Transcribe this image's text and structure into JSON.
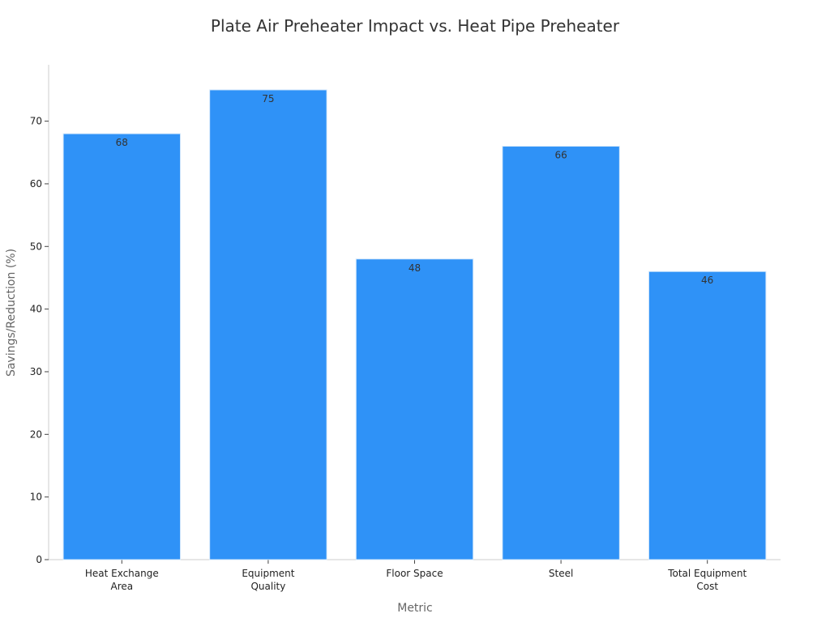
{
  "chart_data": {
    "type": "bar",
    "title": "Plate Air Preheater Impact vs. Heat Pipe Preheater",
    "xlabel": "Metric",
    "ylabel": "Savings/Reduction (%)",
    "categories": [
      [
        "Heat Exchange",
        "Area"
      ],
      [
        "Equipment",
        "Quality"
      ],
      [
        "Floor Space"
      ],
      [
        "Steel"
      ],
      [
        "Total Equipment",
        "Cost"
      ]
    ],
    "values": [
      68,
      75,
      48,
      66,
      46
    ],
    "ylim": [
      0,
      79
    ],
    "yticks": [
      0,
      10,
      20,
      30,
      40,
      50,
      60,
      70
    ],
    "grid": false,
    "bar_color": "#2f92f7",
    "bar_edge_color": "#d6e9fb"
  }
}
